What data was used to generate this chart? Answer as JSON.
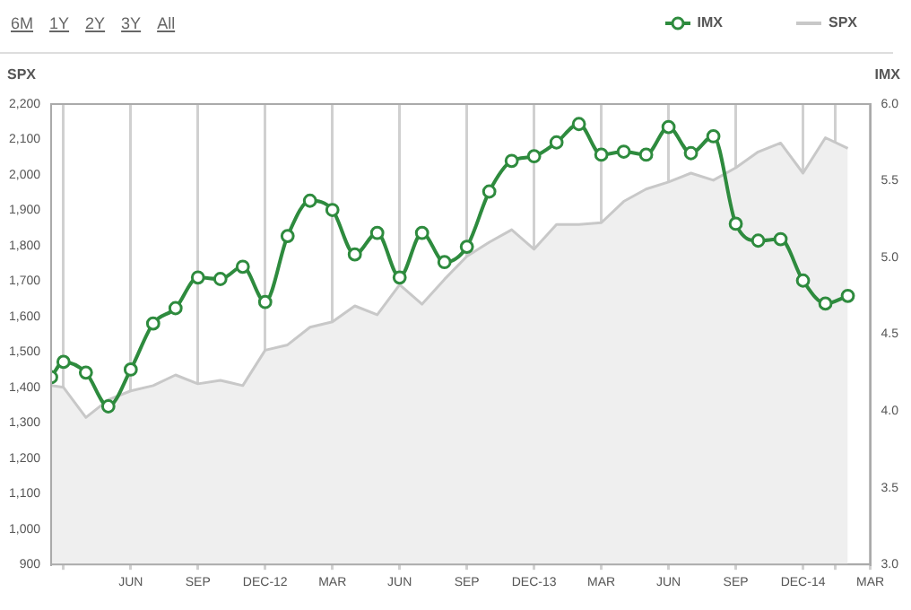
{
  "chart_data": {
    "type": "line",
    "ylabel": "SPX",
    "y2label": "IMX",
    "annotations": [
      "6M",
      "1Y",
      "2Y",
      "3Y",
      "All"
    ],
    "x": [
      "2012-02-14",
      "2012-03",
      "2012-04",
      "2012-05",
      "2012-06",
      "2012-07",
      "2012-08",
      "2012-09",
      "2012-10",
      "2012-11",
      "2012-12",
      "2013-01",
      "2013-02",
      "2013-03",
      "2013-04",
      "2013-05",
      "2013-06",
      "2013-07",
      "2013-08",
      "2013-09",
      "2013-10",
      "2013-11",
      "2013-12",
      "2014-01",
      "2014-02",
      "2014-03",
      "2014-04",
      "2014-05",
      "2014-06",
      "2014-07",
      "2014-08",
      "2014-09",
      "2014-10",
      "2014-11",
      "2014-12",
      "2015-01",
      "2015-02"
    ],
    "series": [
      {
        "name": "IMX",
        "axis": "y2",
        "marker": "circle",
        "color": "#2e8b3e",
        "values": [
          4.22,
          4.32,
          4.25,
          4.03,
          4.27,
          4.57,
          4.67,
          4.87,
          4.86,
          4.94,
          4.71,
          5.14,
          5.37,
          5.31,
          5.02,
          5.16,
          4.87,
          5.16,
          4.97,
          5.07,
          5.43,
          5.63,
          5.66,
          5.75,
          5.87,
          5.67,
          5.69,
          5.67,
          5.85,
          5.68,
          5.79,
          5.22,
          5.11,
          5.12,
          4.85,
          4.7,
          4.75
        ]
      },
      {
        "name": "SPX",
        "type": "area",
        "axis": "y",
        "color": "#c8c8c8",
        "values": [
          1405,
          1400,
          1315,
          1365,
          1390,
          1405,
          1435,
          1410,
          1420,
          1405,
          1505,
          1520,
          1570,
          1585,
          1630,
          1605,
          1690,
          1635,
          1705,
          1770,
          1810,
          1845,
          1790,
          1860,
          1860,
          1865,
          1925,
          1960,
          1980,
          2005,
          1985,
          2020,
          2065,
          2090,
          2005,
          2105,
          2075
        ]
      }
    ],
    "xlim": [
      "2012-02-14",
      "2015-03"
    ],
    "xticks": [
      {
        "value": "2012-03",
        "label": null
      },
      {
        "value": "2012-06",
        "label": "JUN"
      },
      {
        "value": "2012-09",
        "label": "SEP"
      },
      {
        "value": "2012-12",
        "label": "DEC-12"
      },
      {
        "value": "2013-03",
        "label": "MAR"
      },
      {
        "value": "2013-06",
        "label": "JUN"
      },
      {
        "value": "2013-09",
        "label": "SEP"
      },
      {
        "value": "2013-12",
        "label": "DEC-13"
      },
      {
        "value": "2014-03",
        "label": "MAR"
      },
      {
        "value": "2014-06",
        "label": "JUN"
      },
      {
        "value": "2014-09",
        "label": "SEP"
      },
      {
        "value": "2014-12",
        "label": "DEC-14"
      },
      {
        "value": "2015-01-15",
        "label": null
      },
      {
        "value": "2015-03",
        "label": "MAR"
      }
    ],
    "ylim": [
      900,
      2200
    ],
    "yticks": [
      {
        "value": 900,
        "label": "900"
      },
      {
        "value": 1000,
        "label": "1,000"
      },
      {
        "value": 1100,
        "label": "1,100"
      },
      {
        "value": 1200,
        "label": "1,200"
      },
      {
        "value": 1300,
        "label": "1,300"
      },
      {
        "value": 1400,
        "label": "1,400"
      },
      {
        "value": 1500,
        "label": "1,500"
      },
      {
        "value": 1600,
        "label": "1,600"
      },
      {
        "value": 1700,
        "label": "1,700"
      },
      {
        "value": 1800,
        "label": "1,800"
      },
      {
        "value": 1900,
        "label": "1,900"
      },
      {
        "value": 2000,
        "label": "2,000"
      },
      {
        "value": 2100,
        "label": "2,100"
      },
      {
        "value": 2200,
        "label": "2,200"
      }
    ],
    "y2lim": [
      3,
      6
    ],
    "y2ticks": [
      {
        "value": 3,
        "label": "3.0"
      },
      {
        "value": 3.5,
        "label": "3.5"
      },
      {
        "value": 4,
        "label": "4.0"
      },
      {
        "value": 4.5,
        "label": "4.5"
      },
      {
        "value": 5,
        "label": "5.0"
      },
      {
        "value": 5.5,
        "label": "5.5"
      },
      {
        "value": 6,
        "label": "6.0"
      }
    ],
    "grid": "x",
    "legend": "top right"
  }
}
